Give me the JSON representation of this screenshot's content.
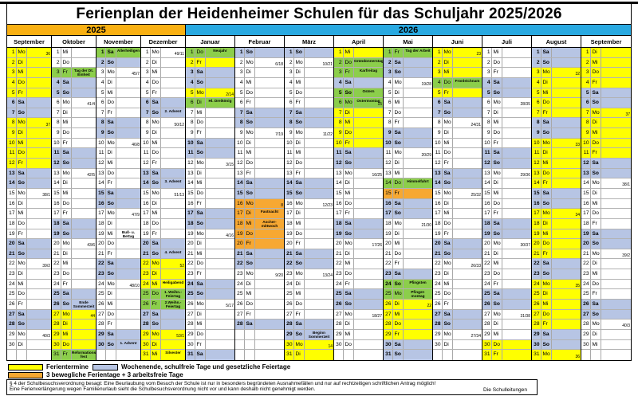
{
  "title": "Ferienplan der Heidenheimer Schulen für das Schuljahr 2025/2026",
  "colors": {
    "ferien_yellow": "#FFFF00",
    "weekend_blue": "#B7C5E4",
    "feiertag_green": "#8CCE4B",
    "beweglich_orange": "#F7A832",
    "band_2025": "#F9B013",
    "band_2026": "#29A9E1"
  },
  "year_bands": [
    {
      "label": "2025",
      "months": 4
    },
    {
      "label": "2026",
      "months": 9
    }
  ],
  "weekday_names": [
    "Mo",
    "Di",
    "Mi",
    "Do",
    "Fr",
    "Sa",
    "So"
  ],
  "months": [
    {
      "name": "September",
      "year": "2025",
      "start_weekday": "Mo",
      "days": 30,
      "yellow": [
        [
          1,
          5
        ],
        [
          8,
          12
        ]
      ],
      "green": [],
      "orange": [],
      "notes": {},
      "weeks": {
        "1": "36",
        "8": "37",
        "15": "38/1",
        "22": "39/2",
        "29": "40/3"
      }
    },
    {
      "name": "Oktober",
      "year": "2025",
      "start_weekday": "Mi",
      "days": 31,
      "yellow": [
        [
          27,
          30
        ]
      ],
      "green": [
        3,
        31
      ],
      "orange": [],
      "notes": {
        "3": "Tag der Dt.\nEinheit",
        "26": "Ende\nSommerzeit",
        "31": "Reformations-\nfest"
      },
      "weeks": {
        "6": "41/4",
        "13": "42/5",
        "20": "43/6",
        "27": "44"
      }
    },
    {
      "name": "November",
      "year": "2025",
      "start_weekday": "Sa",
      "days": 30,
      "yellow": [],
      "green": [
        1
      ],
      "orange": [],
      "notes": {
        "1": "Allerheiligen",
        "19": "Buß- u. Bettag",
        "30": "1. Advent"
      },
      "weeks": {
        "3": "45/7",
        "10": "46/8",
        "17": "47/9",
        "24": "48/10"
      }
    },
    {
      "name": "Dezember",
      "year": "2025",
      "start_weekday": "Mo",
      "days": 31,
      "yellow": [
        [
          22,
          24
        ],
        [
          29,
          31
        ]
      ],
      "green": [
        25,
        26
      ],
      "orange": [],
      "notes": {
        "7": "2. Advent",
        "14": "3. Advent",
        "21": "4. Advent",
        "24": "Heiligabend",
        "25": "1. Weihn.-\nFeiertag",
        "26": "2.Weihn.-\nFeiertag",
        "31": "Silvester"
      },
      "weeks": {
        "1": "49/11",
        "8": "50/12",
        "15": "51/13",
        "22": "52",
        "29": "53/1"
      }
    },
    {
      "name": "Januar",
      "year": "2026",
      "start_weekday": "Do",
      "days": 31,
      "yellow": [
        [
          2,
          2
        ],
        [
          5,
          5
        ]
      ],
      "green": [
        1,
        6
      ],
      "orange": [],
      "notes": {
        "1": "Neujahr",
        "6": "Hl. Dreikönig"
      },
      "weeks": {
        "5": "2/14",
        "12": "3/15",
        "19": "4/16",
        "26": "5/17"
      }
    },
    {
      "name": "Februar",
      "year": "2026",
      "start_weekday": "So",
      "days": 28,
      "yellow": [],
      "green": [],
      "orange": [
        [
          16,
          20
        ]
      ],
      "notes": {
        "17": "Fastnacht",
        "18": "Ascher-\nmittwoch"
      },
      "weeks": {
        "2": "6/18",
        "9": "7/19",
        "16": "8",
        "23": "9/20"
      }
    },
    {
      "name": "März",
      "year": "2026",
      "start_weekday": "So",
      "days": 31,
      "yellow": [
        [
          30,
          31
        ]
      ],
      "green": [],
      "orange": [],
      "notes": {
        "29": "Beginn\nSommerzeit"
      },
      "weeks": {
        "2": "10/21",
        "9": "11/22",
        "16": "12/23",
        "23": "13/24",
        "30": "14"
      }
    },
    {
      "name": "April",
      "year": "2026",
      "start_weekday": "Mi",
      "days": 30,
      "yellow": [
        [
          1,
          1
        ],
        [
          7,
          10
        ]
      ],
      "green": [
        2,
        3,
        5,
        6
      ],
      "orange": [],
      "notes": {
        "2": "Gründonnerstag",
        "3": "Karfreitag",
        "5": "Ostern",
        "6": "Ostermontag"
      },
      "weeks": {
        "6": "15",
        "13": "16/25",
        "20": "17/26",
        "27": "18/27"
      }
    },
    {
      "name": "Mai",
      "year": "2026",
      "start_weekday": "Fr",
      "days": 31,
      "yellow": [
        [
          26,
          29
        ]
      ],
      "green": [
        1,
        14,
        24,
        25
      ],
      "orange": [
        [
          15,
          15
        ]
      ],
      "notes": {
        "1": "Tag der Arbeit",
        "14": "Himmelfahrt",
        "24": "Pfingsten",
        "25": "Pfingst-\nmontag"
      },
      "weeks": {
        "4": "19/28",
        "11": "20/29",
        "18": "21/30",
        "26": "22"
      }
    },
    {
      "name": "Juni",
      "year": "2026",
      "start_weekday": "Mo",
      "days": 30,
      "yellow": [
        [
          1,
          3
        ],
        [
          5,
          5
        ]
      ],
      "green": [
        4
      ],
      "orange": [],
      "notes": {
        "4": "Fronleichnam"
      },
      "weeks": {
        "1": "23",
        "8": "24/31",
        "15": "25/32",
        "22": "26/33",
        "29": "27/34"
      }
    },
    {
      "name": "Juli",
      "year": "2026",
      "start_weekday": "Mi",
      "days": 31,
      "yellow": [
        [
          30,
          31
        ]
      ],
      "green": [],
      "orange": [],
      "notes": {},
      "weeks": {
        "6": "28/35",
        "13": "29/36",
        "20": "30/37",
        "27": "31/38"
      }
    },
    {
      "name": "August",
      "year": "2026",
      "start_weekday": "Sa",
      "days": 31,
      "yellow": [
        [
          3,
          7
        ],
        [
          10,
          14
        ],
        [
          17,
          21
        ],
        [
          24,
          28
        ],
        [
          31,
          31
        ]
      ],
      "green": [],
      "orange": [],
      "notes": {},
      "weeks": {
        "3": "32",
        "10": "33",
        "17": "34",
        "24": "35",
        "31": "36"
      }
    },
    {
      "name": "September",
      "year": "2026",
      "start_weekday": "Di",
      "days": 30,
      "yellow": [
        [
          1,
          4
        ],
        [
          7,
          11
        ]
      ],
      "green": [],
      "orange": [],
      "notes": {},
      "weeks": {
        "7": "37",
        "14": "38/1",
        "21": "39/2",
        "28": "40/3"
      }
    }
  ],
  "legend": [
    {
      "color": "ferien_yellow",
      "label": "Ferientermine"
    },
    {
      "color": "weekend_blue",
      "label": "Wochenende, schulfreie Tage und gesetzliche Feiertage"
    },
    {
      "color": "beweglich_orange",
      "label": "3 bewegliche Ferientage + 3 arbeitsfreie Tage"
    }
  ],
  "footer": {
    "line1": "§ 4 der Schulbesuchsverordnung besagt: Eine Beurlaubung vom Besuch der Schule ist nur in besonders begründeten Ausnahmefällen und nur auf rechtzeitigen schriftlichen Antrag möglich!",
    "line2": "Eine Ferienverlängerung wegen Familienurlaub sieht die Schulbesuchsverordnung nicht vor und kann deshalb nicht genehmigt werden.",
    "signature": "Die Schulleitungen"
  }
}
